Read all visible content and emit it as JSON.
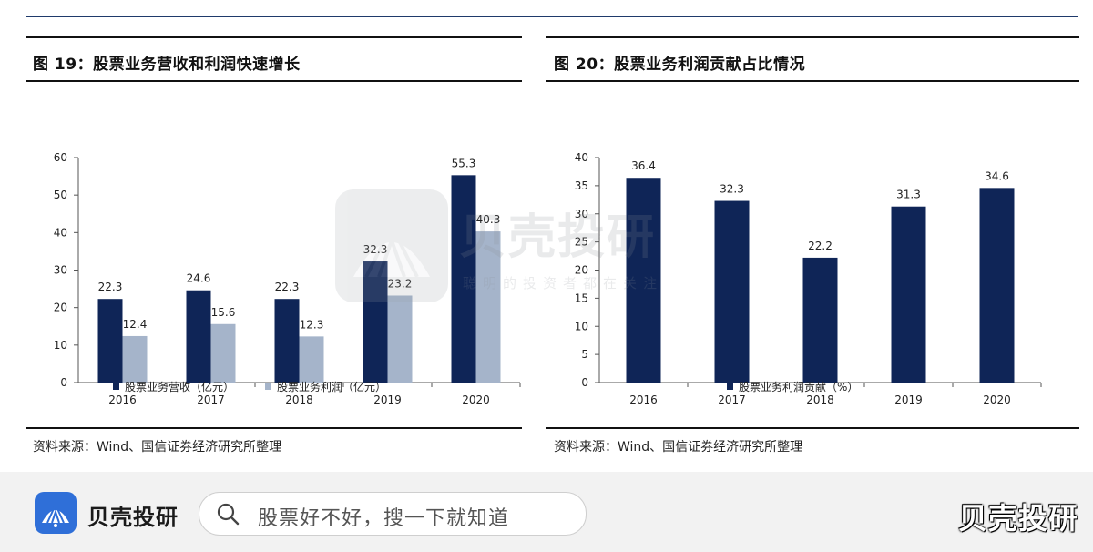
{
  "left_chart": {
    "title": "图 19：股票业务营收和利润快速增长",
    "source": "资料来源：Wind、国信证券经济研究所整理"
  },
  "right_chart": {
    "title": "图 20：股票业务利润贡献占比情况",
    "source": "资料来源：Wind、国信证券经济研究所整理"
  },
  "chart_data": [
    {
      "type": "bar",
      "title": "图 19：股票业务营收和利润快速增长",
      "categories": [
        "2016",
        "2017",
        "2018",
        "2019",
        "2020"
      ],
      "series": [
        {
          "name": "股票业务营收（亿元）",
          "values": [
            22.3,
            24.6,
            22.3,
            32.3,
            55.3
          ],
          "color": "#0f2557"
        },
        {
          "name": "股票业务利润（亿元）",
          "values": [
            12.4,
            15.6,
            12.3,
            23.2,
            40.3
          ],
          "color": "#a5b4ca"
        }
      ],
      "yticks": [
        "0",
        "10",
        "20",
        "30",
        "40",
        "50",
        "60"
      ],
      "ylim": [
        0,
        60
      ],
      "legend": "bottom",
      "grid": false
    },
    {
      "type": "bar",
      "title": "图 20：股票业务利润贡献占比情况",
      "categories": [
        "2016",
        "2017",
        "2018",
        "2019",
        "2020"
      ],
      "series": [
        {
          "name": "股票业务利润贡献（%）",
          "values": [
            36.4,
            32.3,
            22.2,
            31.3,
            34.6
          ],
          "color": "#0f2557"
        }
      ],
      "yticks": [
        "0",
        "5",
        "10",
        "15",
        "20",
        "25",
        "30",
        "35",
        "40"
      ],
      "ylim": [
        0,
        40
      ],
      "legend": "bottom",
      "grid": false
    }
  ],
  "watermark": {
    "title": "贝壳投研",
    "subtitle": "聪明的投资者都在关注"
  },
  "footer": {
    "logo_text": "贝壳投研",
    "search_placeholder": "股票好不好，搜一下就知道",
    "corner_text": "贝壳投研",
    "accent_color": "#2f6fd8"
  }
}
